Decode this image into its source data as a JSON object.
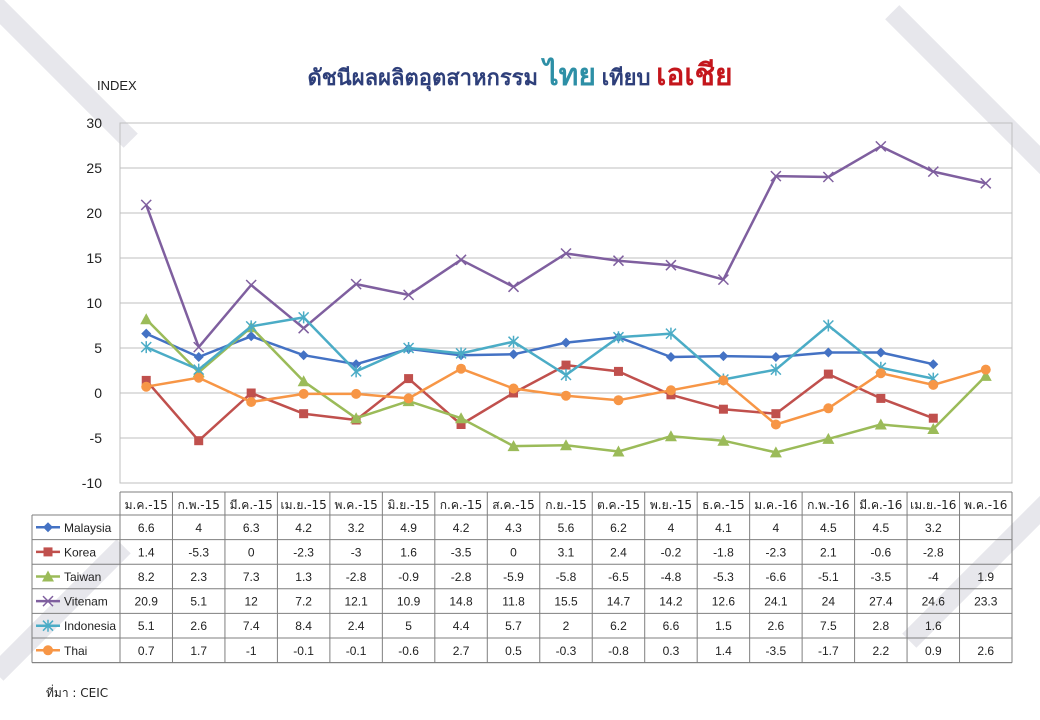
{
  "title": {
    "part1": "ดัชนีผลผลิตอุตสาหกรรม",
    "part2": "ไทย",
    "part3": "เทียบ",
    "part4": "เอเชีย"
  },
  "source": "ที่มา : CEIC",
  "chart_data": {
    "type": "line",
    "title": "ดัชนีผลผลิตอุตสาหกรรม ไทย เทียบ เอเชีย",
    "ylabel": "INDEX",
    "ylim": [
      -10,
      30
    ],
    "yticks": [
      -10,
      -5,
      0,
      5,
      10,
      15,
      20,
      25,
      30
    ],
    "grid": true,
    "legend": "data-table-below",
    "categories": [
      "ม.ค.-15",
      "ก.พ.-15",
      "มี.ค.-15",
      "เม.ย.-15",
      "พ.ค.-15",
      "มิ.ย.-15",
      "ก.ค.-15",
      "ส.ค.-15",
      "ก.ย.-15",
      "ต.ค.-15",
      "พ.ย.-15",
      "ธ.ค.-15",
      "ม.ค.-16",
      "ก.พ.-16",
      "มี.ค.-16",
      "เม.ย.-16",
      "พ.ค.-16"
    ],
    "series": [
      {
        "name": "Malaysia",
        "color": "#4472c4",
        "marker": "diamond",
        "values": [
          6.6,
          4,
          6.3,
          4.2,
          3.2,
          4.9,
          4.2,
          4.3,
          5.6,
          6.2,
          4,
          4.1,
          4,
          4.5,
          4.5,
          3.2,
          null
        ]
      },
      {
        "name": "Korea",
        "color": "#c0504d",
        "marker": "square",
        "values": [
          1.4,
          -5.3,
          0,
          -2.3,
          -3,
          1.6,
          -3.5,
          0,
          3.1,
          2.4,
          -0.2,
          -1.8,
          -2.3,
          2.1,
          -0.6,
          -2.8,
          null
        ]
      },
      {
        "name": "Taiwan",
        "color": "#9bbb59",
        "marker": "triangle",
        "values": [
          8.2,
          2.3,
          7.3,
          1.3,
          -2.8,
          -0.9,
          -2.8,
          -5.9,
          -5.8,
          -6.5,
          -4.8,
          -5.3,
          -6.6,
          -5.1,
          -3.5,
          -4,
          1.9
        ]
      },
      {
        "name": "Vitenam",
        "color": "#7f5f9f",
        "marker": "x",
        "values": [
          20.9,
          5.1,
          12,
          7.2,
          12.1,
          10.9,
          14.8,
          11.8,
          15.5,
          14.7,
          14.2,
          12.6,
          24.1,
          24,
          27.4,
          24.6,
          23.3
        ]
      },
      {
        "name": "Indonesia",
        "color": "#4bacc6",
        "marker": "star",
        "values": [
          5.1,
          2.6,
          7.4,
          8.4,
          2.4,
          5,
          4.4,
          5.7,
          2,
          6.2,
          6.6,
          1.5,
          2.6,
          7.5,
          2.8,
          1.6,
          null
        ]
      },
      {
        "name": "Thai",
        "color": "#f79646",
        "marker": "circle",
        "values": [
          0.7,
          1.7,
          -1,
          -0.1,
          -0.1,
          -0.6,
          2.7,
          0.5,
          -0.3,
          -0.8,
          0.3,
          1.4,
          -3.5,
          -1.7,
          2.2,
          0.9,
          2.6
        ]
      }
    ]
  }
}
